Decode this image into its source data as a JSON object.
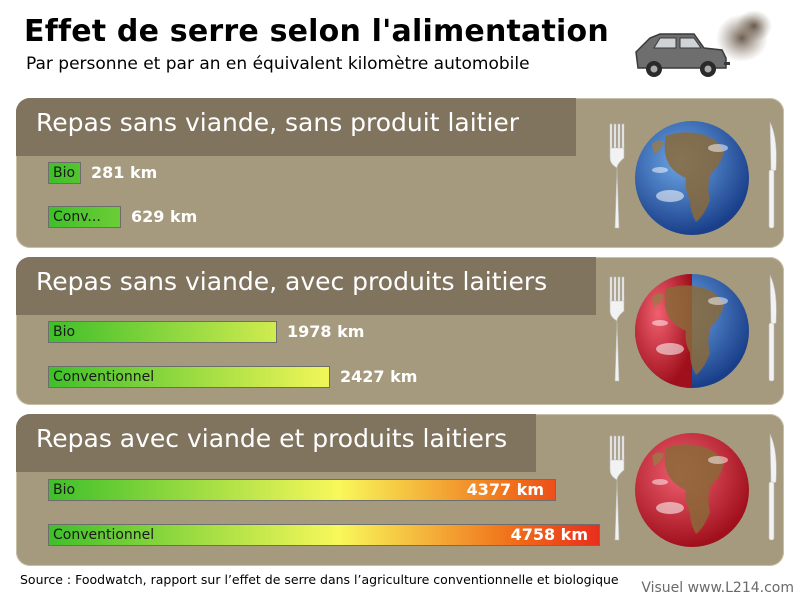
{
  "title": "Effet de serre selon l'alimentation",
  "subtitle": "Par personne et par an en équivalent kilomètre automobile",
  "source": "Source : Foodwatch, rapport sur l’effet de serre dans l’agriculture conventionnelle et biologique",
  "credit": "Visuel www.L214.com",
  "unit": "km",
  "chart_data": {
    "type": "bar",
    "orientation": "horizontal",
    "title": "Effet de serre selon l'alimentation",
    "subtitle": "Par personne et par an en équivalent kilomètre automobile",
    "groups": [
      {
        "label": "Repas sans viande, sans produit laitier",
        "bars": [
          {
            "name": "Bio",
            "value": 281,
            "value_label": "281 km"
          },
          {
            "name": "Conv...",
            "value": 629,
            "value_label": "629 km"
          }
        ]
      },
      {
        "label": "Repas sans viande, avec produits laitiers",
        "bars": [
          {
            "name": "Bio",
            "value": 1978,
            "value_label": "1978 km"
          },
          {
            "name": "Conventionnel",
            "value": 2427,
            "value_label": "2427 km"
          }
        ]
      },
      {
        "label": "Repas avec viande et produits laitiers",
        "bars": [
          {
            "name": "Bio",
            "value": 4377,
            "value_label": "4377 km"
          },
          {
            "name": "Conventionnel",
            "value": 4758,
            "value_label": "4758 km"
          }
        ]
      }
    ],
    "gradient": [
      "#3fbf2a",
      "#f8f85a",
      "#f06a18",
      "#e8261e"
    ],
    "globe_styles": [
      "blue",
      "half-red",
      "red"
    ],
    "panel_color": "#a59a7d",
    "panel_tab_color": "#80745f"
  }
}
